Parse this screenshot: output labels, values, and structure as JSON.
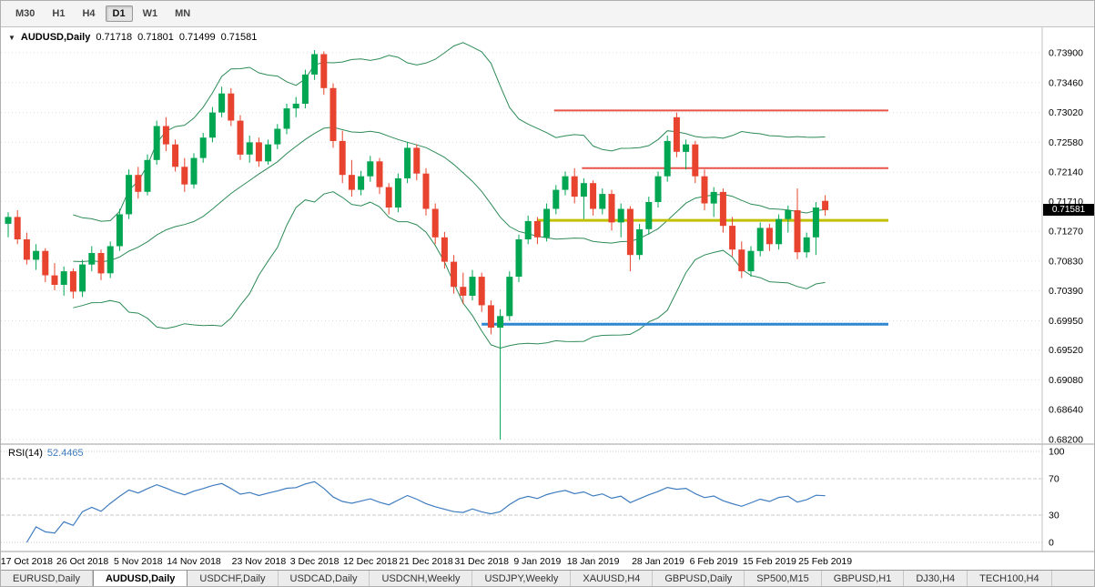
{
  "toolbar": {
    "timeframes": [
      {
        "label": "M30",
        "active": false
      },
      {
        "label": "H1",
        "active": false
      },
      {
        "label": "H4",
        "active": false
      },
      {
        "label": "D1",
        "active": true
      },
      {
        "label": "W1",
        "active": false
      },
      {
        "label": "MN",
        "active": false
      }
    ]
  },
  "chart": {
    "collapse_icon": "▼",
    "title": "AUDUSD,Daily",
    "quote": {
      "open": "0.71718",
      "high": "0.71801",
      "low": "0.71499",
      "close": "0.71581"
    },
    "price_badge": "0.71581"
  },
  "rsi": {
    "name": "RSI(14)",
    "value": "52.4465"
  },
  "chart_data": {
    "type": "candlestick",
    "title": "AUDUSD,Daily",
    "ohlc_current": {
      "open": 0.71718,
      "high": 0.71801,
      "low": 0.71499,
      "close": 0.71581
    },
    "y_axis": {
      "min": 0.682,
      "max": 0.739,
      "ticks": [
        "0.73900",
        "0.73460",
        "0.73020",
        "0.72580",
        "0.72140",
        "0.71710",
        "0.71270",
        "0.70830",
        "0.70390",
        "0.69950",
        "0.69520",
        "0.69080",
        "0.68640",
        "0.68200"
      ]
    },
    "x_labels": [
      {
        "text": "17 Oct 2018",
        "idx": 2
      },
      {
        "text": "26 Oct 2018",
        "idx": 8
      },
      {
        "text": "5 Nov 2018",
        "idx": 14
      },
      {
        "text": "14 Nov 2018",
        "idx": 20
      },
      {
        "text": "23 Nov 2018",
        "idx": 27
      },
      {
        "text": "3 Dec 2018",
        "idx": 33
      },
      {
        "text": "12 Dec 2018",
        "idx": 39
      },
      {
        "text": "21 Dec 2018",
        "idx": 45
      },
      {
        "text": "31 Dec 2018",
        "idx": 51
      },
      {
        "text": "9 Jan 2019",
        "idx": 57
      },
      {
        "text": "18 Jan 2019",
        "idx": 63
      },
      {
        "text": "28 Jan 2019",
        "idx": 70
      },
      {
        "text": "6 Feb 2019",
        "idx": 76
      },
      {
        "text": "15 Feb 2019",
        "idx": 82
      },
      {
        "text": "25 Feb 2019",
        "idx": 88
      }
    ],
    "candles": [
      [
        0.7138,
        0.7155,
        0.7118,
        0.7148
      ],
      [
        0.7148,
        0.7158,
        0.7108,
        0.7115
      ],
      [
        0.7115,
        0.7125,
        0.7078,
        0.7085
      ],
      [
        0.7085,
        0.7108,
        0.707,
        0.7098
      ],
      [
        0.7098,
        0.7102,
        0.7052,
        0.7062
      ],
      [
        0.7062,
        0.708,
        0.704,
        0.7048
      ],
      [
        0.7048,
        0.7075,
        0.7032,
        0.7068
      ],
      [
        0.7068,
        0.7072,
        0.7028,
        0.7038
      ],
      [
        0.7038,
        0.7085,
        0.703,
        0.7078
      ],
      [
        0.7078,
        0.7105,
        0.7068,
        0.7095
      ],
      [
        0.7095,
        0.71,
        0.7055,
        0.7065
      ],
      [
        0.7065,
        0.7112,
        0.7058,
        0.7105
      ],
      [
        0.7105,
        0.716,
        0.7098,
        0.7152
      ],
      [
        0.7152,
        0.7218,
        0.7145,
        0.721
      ],
      [
        0.721,
        0.7222,
        0.7175,
        0.7185
      ],
      [
        0.7185,
        0.724,
        0.718,
        0.7232
      ],
      [
        0.7232,
        0.729,
        0.7225,
        0.7282
      ],
      [
        0.7282,
        0.7295,
        0.7245,
        0.7255
      ],
      [
        0.7255,
        0.7262,
        0.7215,
        0.7222
      ],
      [
        0.7222,
        0.7235,
        0.7185,
        0.7196
      ],
      [
        0.7196,
        0.7242,
        0.719,
        0.7235
      ],
      [
        0.7235,
        0.7272,
        0.7228,
        0.7265
      ],
      [
        0.7265,
        0.731,
        0.7258,
        0.7302
      ],
      [
        0.7302,
        0.734,
        0.7295,
        0.733
      ],
      [
        0.733,
        0.7338,
        0.7282,
        0.729
      ],
      [
        0.729,
        0.7298,
        0.7232,
        0.724
      ],
      [
        0.724,
        0.7268,
        0.7228,
        0.7258
      ],
      [
        0.7258,
        0.7265,
        0.7222,
        0.723
      ],
      [
        0.723,
        0.7262,
        0.7225,
        0.7255
      ],
      [
        0.7255,
        0.7285,
        0.7248,
        0.7278
      ],
      [
        0.7278,
        0.7315,
        0.727,
        0.7308
      ],
      [
        0.7308,
        0.7325,
        0.7295,
        0.7315
      ],
      [
        0.7315,
        0.7365,
        0.7308,
        0.7358
      ],
      [
        0.7358,
        0.7394,
        0.735,
        0.7388
      ],
      [
        0.7388,
        0.7392,
        0.7328,
        0.7338
      ],
      [
        0.7338,
        0.7345,
        0.725,
        0.726
      ],
      [
        0.726,
        0.7275,
        0.7198,
        0.721
      ],
      [
        0.721,
        0.7232,
        0.7178,
        0.7188
      ],
      [
        0.7188,
        0.7216,
        0.718,
        0.7208
      ],
      [
        0.7208,
        0.7238,
        0.72,
        0.723
      ],
      [
        0.723,
        0.7235,
        0.7182,
        0.7192
      ],
      [
        0.7192,
        0.7198,
        0.7152,
        0.7162
      ],
      [
        0.7162,
        0.7212,
        0.7155,
        0.7205
      ],
      [
        0.7205,
        0.7258,
        0.7198,
        0.725
      ],
      [
        0.725,
        0.7255,
        0.7202,
        0.7212
      ],
      [
        0.7212,
        0.722,
        0.715,
        0.716
      ],
      [
        0.716,
        0.7168,
        0.7108,
        0.7118
      ],
      [
        0.7118,
        0.7126,
        0.7072,
        0.7082
      ],
      [
        0.7082,
        0.7092,
        0.7035,
        0.7045
      ],
      [
        0.7045,
        0.7066,
        0.702,
        0.7032
      ],
      [
        0.7032,
        0.707,
        0.7025,
        0.706
      ],
      [
        0.706,
        0.7066,
        0.7008,
        0.7018
      ],
      [
        0.7018,
        0.7025,
        0.6975,
        0.6985
      ],
      [
        0.6985,
        0.7012,
        0.682,
        0.7002
      ],
      [
        0.7002,
        0.7068,
        0.6995,
        0.706
      ],
      [
        0.706,
        0.7122,
        0.7052,
        0.7115
      ],
      [
        0.7115,
        0.715,
        0.7108,
        0.7142
      ],
      [
        0.7142,
        0.7148,
        0.7108,
        0.7118
      ],
      [
        0.7118,
        0.7168,
        0.7112,
        0.716
      ],
      [
        0.716,
        0.7195,
        0.7152,
        0.7188
      ],
      [
        0.7188,
        0.7215,
        0.718,
        0.7208
      ],
      [
        0.7208,
        0.722,
        0.7168,
        0.7178
      ],
      [
        0.7178,
        0.7205,
        0.7145,
        0.7198
      ],
      [
        0.7198,
        0.7202,
        0.715,
        0.716
      ],
      [
        0.716,
        0.719,
        0.7152,
        0.7182
      ],
      [
        0.7182,
        0.7188,
        0.7128,
        0.714
      ],
      [
        0.714,
        0.7168,
        0.7118,
        0.716
      ],
      [
        0.716,
        0.7164,
        0.7068,
        0.7092
      ],
      [
        0.7092,
        0.7138,
        0.7085,
        0.713
      ],
      [
        0.713,
        0.7178,
        0.7122,
        0.717
      ],
      [
        0.717,
        0.7215,
        0.7162,
        0.7208
      ],
      [
        0.7208,
        0.7268,
        0.72,
        0.726
      ],
      [
        0.7295,
        0.7302,
        0.7236,
        0.7244
      ],
      [
        0.7244,
        0.7262,
        0.7218,
        0.7255
      ],
      [
        0.7255,
        0.726,
        0.7198,
        0.7208
      ],
      [
        0.7208,
        0.7218,
        0.7158,
        0.7168
      ],
      [
        0.7168,
        0.7192,
        0.7148,
        0.7185
      ],
      [
        0.7185,
        0.719,
        0.7125,
        0.7135
      ],
      [
        0.7135,
        0.7148,
        0.709,
        0.71
      ],
      [
        0.71,
        0.7112,
        0.7058,
        0.7068
      ],
      [
        0.7068,
        0.7105,
        0.706,
        0.7098
      ],
      [
        0.7098,
        0.714,
        0.709,
        0.7132
      ],
      [
        0.7132,
        0.7138,
        0.7098,
        0.7108
      ],
      [
        0.7108,
        0.7152,
        0.71,
        0.7145
      ],
      [
        0.7145,
        0.7165,
        0.7125,
        0.7158
      ],
      [
        0.7158,
        0.719,
        0.7086,
        0.7096
      ],
      [
        0.7096,
        0.7125,
        0.7088,
        0.7118
      ],
      [
        0.7118,
        0.717,
        0.7092,
        0.7162
      ],
      [
        0.71718,
        0.71801,
        0.71499,
        0.71581
      ]
    ],
    "indicators": {
      "bollinger": {
        "period": 20,
        "deviation": 2,
        "color": "#2e8b57"
      },
      "rsi": {
        "period": 14,
        "value": 52.4465,
        "levels": [
          100,
          70,
          30,
          0
        ],
        "color": "#3f7cbf"
      }
    },
    "hlines": [
      {
        "price": 0.7305,
        "from_idx": 58.8,
        "to_idx": 94.8,
        "color": "#e8534a",
        "width": 2
      },
      {
        "price": 0.722,
        "from_idx": 61.8,
        "to_idx": 94.8,
        "color": "#e8534a",
        "width": 2
      },
      {
        "price": 0.7143,
        "from_idx": 57.0,
        "to_idx": 94.8,
        "color": "#c0c000",
        "width": 3
      },
      {
        "price": 0.699,
        "from_idx": 51.0,
        "to_idx": 94.8,
        "color": "#2f86d1",
        "width": 3
      }
    ],
    "colors": {
      "bull": "#00a651",
      "bear": "#e8432e",
      "grid": "#dcdcdc",
      "axis_text": "#000000",
      "badge_bg": "#000000",
      "badge_text": "#ffffff",
      "separator": "#9c9c9c"
    },
    "legend_position": "none",
    "grid": true
  },
  "tabs": [
    {
      "label": "EURUSD,Daily",
      "active": false
    },
    {
      "label": "AUDUSD,Daily",
      "active": true
    },
    {
      "label": "USDCHF,Daily",
      "active": false
    },
    {
      "label": "USDCAD,Daily",
      "active": false
    },
    {
      "label": "USDCNH,Weekly",
      "active": false
    },
    {
      "label": "USDJPY,Weekly",
      "active": false
    },
    {
      "label": "XAUUSD,H4",
      "active": false
    },
    {
      "label": "GBPUSD,Daily",
      "active": false
    },
    {
      "label": "SP500,M15",
      "active": false
    },
    {
      "label": "GBPUSD,H1",
      "active": false
    },
    {
      "label": "DJ30,H4",
      "active": false
    },
    {
      "label": "TECH100,H4",
      "active": false
    }
  ]
}
